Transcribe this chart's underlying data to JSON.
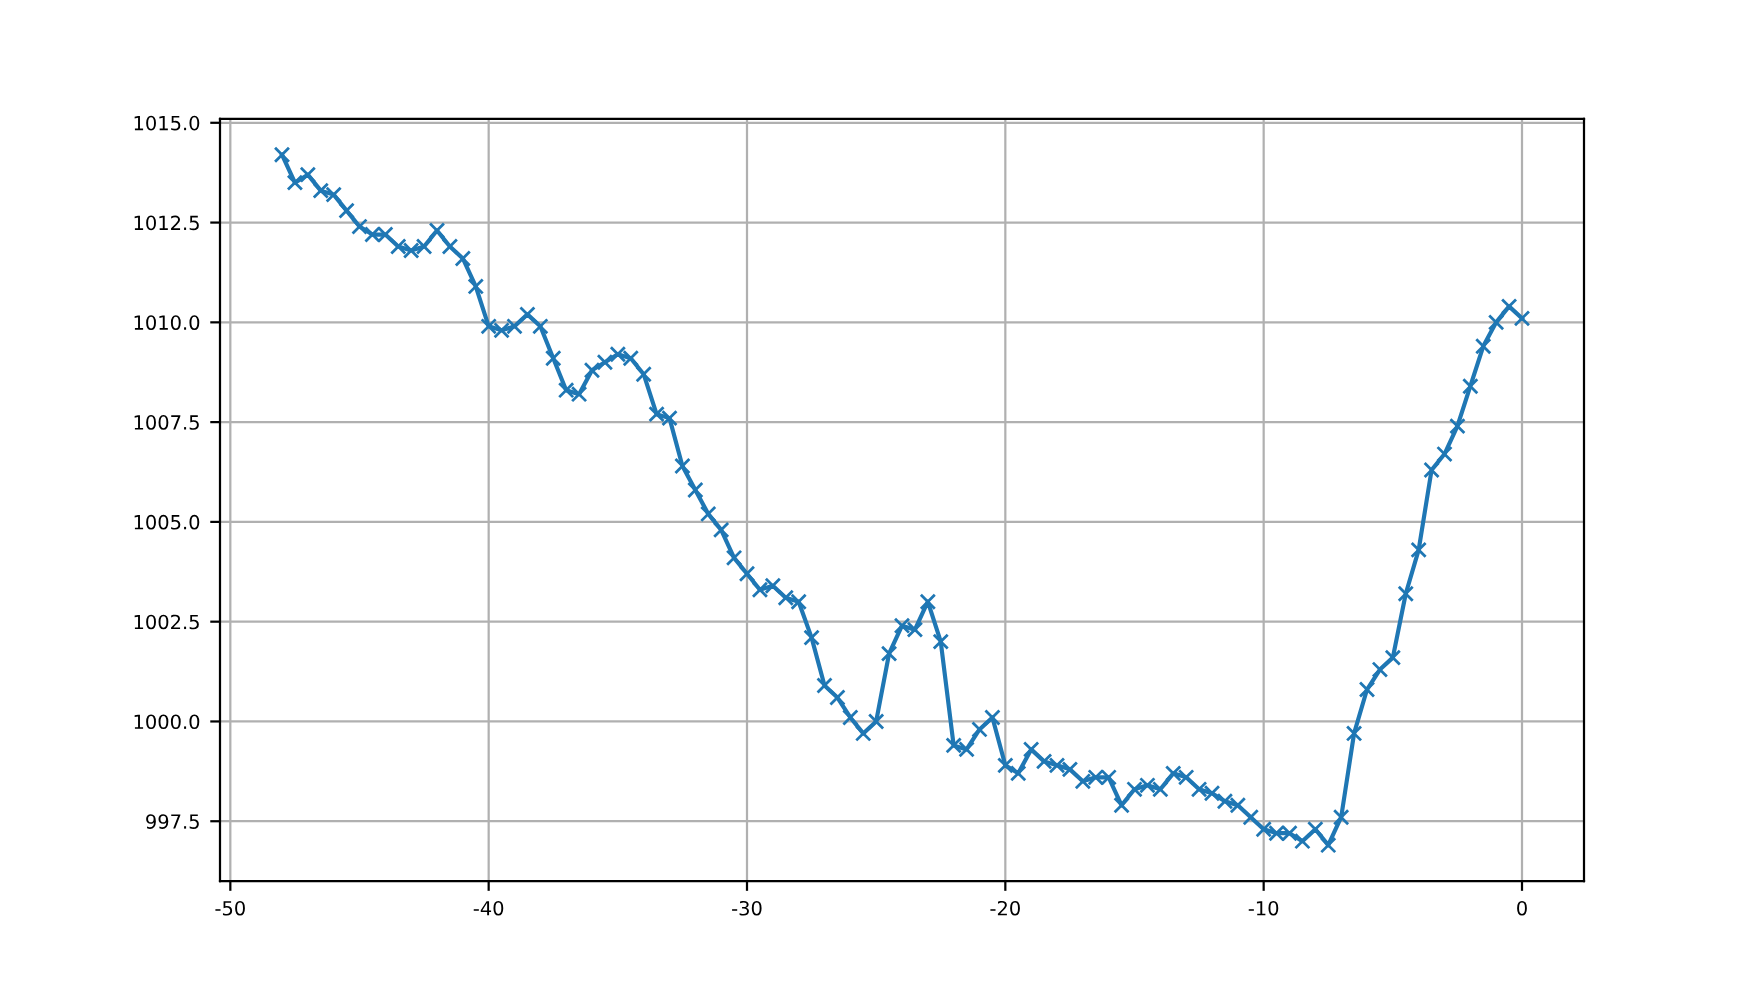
{
  "chart_data": {
    "type": "line",
    "x": [
      -48,
      -47.5,
      -47,
      -46.5,
      -46,
      -45.5,
      -45,
      -44.5,
      -44,
      -43.5,
      -43,
      -42.5,
      -42,
      -41.5,
      -41,
      -40.5,
      -40,
      -39.5,
      -39,
      -38.5,
      -38,
      -37.5,
      -37,
      -36.5,
      -36,
      -35.5,
      -35,
      -34.5,
      -34,
      -33.5,
      -33,
      -32.5,
      -32,
      -31.5,
      -31,
      -30.5,
      -30,
      -29.5,
      -29,
      -28.5,
      -28,
      -27.5,
      -27,
      -26.5,
      -26,
      -25.5,
      -25,
      -24.5,
      -24,
      -23.5,
      -23,
      -22.5,
      -22,
      -21.5,
      -21,
      -20.5,
      -20,
      -19.5,
      -19,
      -18.5,
      -18,
      -17.5,
      -17,
      -16.5,
      -16,
      -15.5,
      -15,
      -14.5,
      -14,
      -13.5,
      -13,
      -12.5,
      -12,
      -11.5,
      -11,
      -10.5,
      -10,
      -9.5,
      -9,
      -8.5,
      -8,
      -7.5,
      -7,
      -6.5,
      -6,
      -5.5,
      -5,
      -4.5,
      -4,
      -3.5,
      -3,
      -2.5,
      -2,
      -1.5,
      -1,
      -0.5,
      0
    ],
    "series": [
      {
        "color": "#1f77b4",
        "values": [
          1014.2,
          1013.5,
          1013.7,
          1013.3,
          1013.2,
          1012.8,
          1012.4,
          1012.2,
          1012.2,
          1011.9,
          1011.8,
          1011.9,
          1012.3,
          1011.9,
          1011.6,
          1010.9,
          1009.9,
          1009.8,
          1009.9,
          1010.2,
          1009.9,
          1009.1,
          1008.3,
          1008.2,
          1008.8,
          1009.0,
          1009.2,
          1009.1,
          1008.7,
          1007.7,
          1007.6,
          1006.4,
          1005.8,
          1005.2,
          1004.8,
          1004.1,
          1003.7,
          1003.3,
          1003.4,
          1003.1,
          1003.0,
          1002.1,
          1000.9,
          1000.6,
          1000.1,
          999.7,
          1000.0,
          1001.7,
          1002.4,
          1002.3,
          1003.0,
          1002.0,
          999.4,
          999.3,
          999.8,
          1000.1,
          998.9,
          998.7,
          999.3,
          999.0,
          998.9,
          998.8,
          998.5,
          998.6,
          998.6,
          997.9,
          998.3,
          998.4,
          998.3,
          998.7,
          998.6,
          998.3,
          998.2,
          998.0,
          997.9,
          997.6,
          997.3,
          997.2,
          997.2,
          997.0,
          997.3,
          996.9,
          997.6,
          999.7,
          1000.8,
          1001.3,
          1001.6,
          1003.2,
          1004.3,
          1006.3,
          1006.7,
          1007.4,
          1008.4,
          1009.4,
          1010.0,
          1010.4,
          1010.1
        ]
      }
    ],
    "xlim": [
      -50.4,
      2.4
    ],
    "xticks": [
      -50,
      -40,
      -30,
      -20,
      -10,
      0
    ],
    "ylim": [
      996.0,
      1015.1
    ],
    "yticks": [
      {
        "value": 997.5,
        "label": "997.5"
      },
      {
        "value": 1000,
        "label": "1000.0"
      },
      {
        "value": 1002.5,
        "label": "1002.5"
      },
      {
        "value": 1005,
        "label": "1005.0"
      },
      {
        "value": 1007.5,
        "label": "1007.5"
      },
      {
        "value": 1010,
        "label": "1010.0"
      },
      {
        "value": 1012.5,
        "label": "1012.5"
      },
      {
        "value": 1015,
        "label": "1015.0"
      }
    ],
    "grid": true,
    "marker": "cross",
    "line_style": "solid"
  }
}
